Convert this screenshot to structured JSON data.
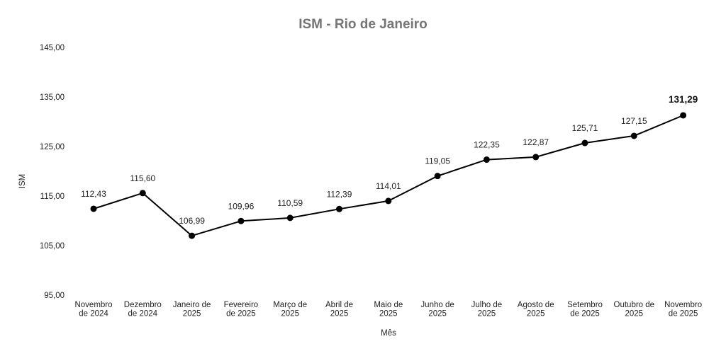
{
  "chart_data": {
    "type": "line",
    "title": "ISM - Rio de Janeiro",
    "xlabel": "Mês",
    "ylabel": "ISM",
    "ylim": [
      95,
      145
    ],
    "yticks": [
      "145,00",
      "135,00",
      "125,00",
      "115,00",
      "105,00",
      "95,00"
    ],
    "ytick_values": [
      145,
      135,
      125,
      115,
      105,
      95
    ],
    "grid": false,
    "legend": "none",
    "categories": [
      [
        "Novembro",
        "de 2024"
      ],
      [
        "Dezembro",
        "de 2024"
      ],
      [
        "Janeiro de",
        "2025"
      ],
      [
        "Fevereiro",
        "de 2025"
      ],
      [
        "Março de",
        "2025"
      ],
      [
        "Abril de",
        "2025"
      ],
      [
        "Maio de",
        "2025"
      ],
      [
        "Junho de",
        "2025"
      ],
      [
        "Julho de",
        "2025"
      ],
      [
        "Agosto de",
        "2025"
      ],
      [
        "Setembro",
        "de 2025"
      ],
      [
        "Outubro de",
        "2025"
      ],
      [
        "Novembro",
        "de 2025"
      ]
    ],
    "series": [
      {
        "values": [
          112.43,
          115.6,
          106.99,
          109.96,
          110.59,
          112.39,
          114.01,
          119.05,
          122.35,
          122.87,
          125.71,
          127.15,
          131.29
        ],
        "labels": [
          "112,43",
          "115,60",
          "106,99",
          "109,96",
          "110,59",
          "112,39",
          "114,01",
          "119,05",
          "122,35",
          "122,87",
          "125,71",
          "127,15",
          "131,29"
        ]
      }
    ],
    "line_color": "#000000"
  }
}
